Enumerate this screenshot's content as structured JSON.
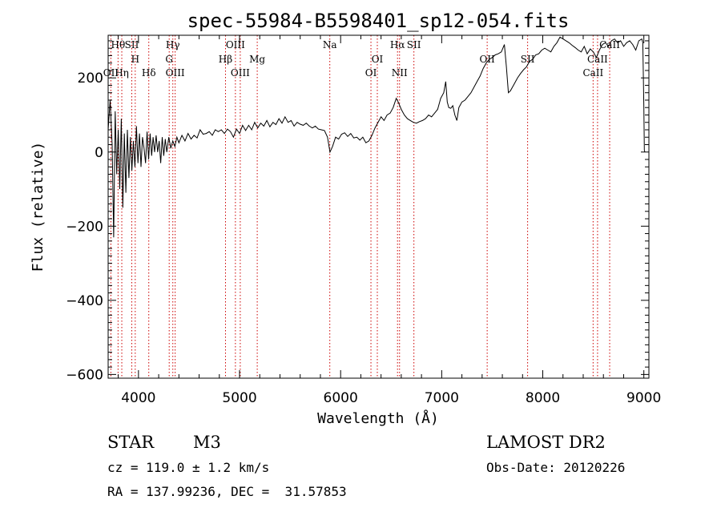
{
  "chart_data": {
    "type": "line",
    "title": "spec-55984-B5598401_sp12-054.fits",
    "xlabel": "Wavelength (Å)",
    "ylabel": "Flux (relative)",
    "xlim": [
      3700,
      9050
    ],
    "ylim": [
      -610,
      315
    ],
    "xticks": [
      {
        "value": 4000,
        "label": "4000"
      },
      {
        "value": 5000,
        "label": "5000"
      },
      {
        "value": 6000,
        "label": "6000"
      },
      {
        "value": 7000,
        "label": "7000"
      },
      {
        "value": 8000,
        "label": "8000"
      },
      {
        "value": 9000,
        "label": "9000"
      }
    ],
    "yticks": [
      {
        "value": 200,
        "label": "200"
      },
      {
        "value": 0,
        "label": "0"
      },
      {
        "value": -200,
        "label": "−200"
      },
      {
        "value": -400,
        "label": "−400"
      },
      {
        "value": -600,
        "label": "−600"
      }
    ],
    "grid": false,
    "line_color": "#000000",
    "marker_line_color": "#cc0000",
    "series": [
      {
        "points": [
          [
            3700,
            60
          ],
          [
            3720,
            140
          ],
          [
            3740,
            20
          ],
          [
            3755,
            -230
          ],
          [
            3770,
            110
          ],
          [
            3785,
            -60
          ],
          [
            3800,
            60
          ],
          [
            3815,
            -100
          ],
          [
            3830,
            90
          ],
          [
            3845,
            -150
          ],
          [
            3860,
            50
          ],
          [
            3875,
            -110
          ],
          [
            3890,
            60
          ],
          [
            3905,
            -70
          ],
          [
            3920,
            40
          ],
          [
            3935,
            -50
          ],
          [
            3950,
            30
          ],
          [
            3965,
            -40
          ],
          [
            3980,
            70
          ],
          [
            3995,
            -30
          ],
          [
            4010,
            50
          ],
          [
            4025,
            -40
          ],
          [
            4040,
            40
          ],
          [
            4055,
            10
          ],
          [
            4070,
            -30
          ],
          [
            4085,
            55
          ],
          [
            4100,
            -20
          ],
          [
            4115,
            50
          ],
          [
            4130,
            -10
          ],
          [
            4145,
            40
          ],
          [
            4160,
            0
          ],
          [
            4175,
            45
          ],
          [
            4190,
            0
          ],
          [
            4205,
            30
          ],
          [
            4220,
            -30
          ],
          [
            4235,
            40
          ],
          [
            4250,
            -10
          ],
          [
            4265,
            35
          ],
          [
            4280,
            0
          ],
          [
            4300,
            40
          ],
          [
            4320,
            10
          ],
          [
            4340,
            30
          ],
          [
            4360,
            15
          ],
          [
            4380,
            40
          ],
          [
            4400,
            25
          ],
          [
            4430,
            45
          ],
          [
            4460,
            30
          ],
          [
            4490,
            50
          ],
          [
            4520,
            35
          ],
          [
            4550,
            45
          ],
          [
            4580,
            38
          ],
          [
            4610,
            60
          ],
          [
            4640,
            48
          ],
          [
            4670,
            50
          ],
          [
            4700,
            55
          ],
          [
            4730,
            45
          ],
          [
            4760,
            60
          ],
          [
            4790,
            55
          ],
          [
            4820,
            60
          ],
          [
            4850,
            50
          ],
          [
            4880,
            62
          ],
          [
            4910,
            55
          ],
          [
            4940,
            40
          ],
          [
            4970,
            62
          ],
          [
            5000,
            50
          ],
          [
            5030,
            72
          ],
          [
            5060,
            58
          ],
          [
            5090,
            72
          ],
          [
            5120,
            60
          ],
          [
            5150,
            80
          ],
          [
            5180,
            65
          ],
          [
            5210,
            78
          ],
          [
            5240,
            70
          ],
          [
            5270,
            85
          ],
          [
            5300,
            68
          ],
          [
            5330,
            80
          ],
          [
            5360,
            74
          ],
          [
            5390,
            90
          ],
          [
            5420,
            78
          ],
          [
            5450,
            95
          ],
          [
            5480,
            80
          ],
          [
            5510,
            85
          ],
          [
            5540,
            70
          ],
          [
            5570,
            80
          ],
          [
            5600,
            75
          ],
          [
            5630,
            72
          ],
          [
            5660,
            78
          ],
          [
            5690,
            70
          ],
          [
            5720,
            65
          ],
          [
            5750,
            70
          ],
          [
            5780,
            62
          ],
          [
            5810,
            60
          ],
          [
            5840,
            58
          ],
          [
            5870,
            40
          ],
          [
            5895,
            0
          ],
          [
            5920,
            15
          ],
          [
            5950,
            40
          ],
          [
            5980,
            35
          ],
          [
            6010,
            48
          ],
          [
            6040,
            52
          ],
          [
            6070,
            42
          ],
          [
            6100,
            50
          ],
          [
            6130,
            38
          ],
          [
            6160,
            40
          ],
          [
            6190,
            32
          ],
          [
            6220,
            40
          ],
          [
            6250,
            25
          ],
          [
            6280,
            30
          ],
          [
            6310,
            45
          ],
          [
            6340,
            65
          ],
          [
            6370,
            80
          ],
          [
            6400,
            95
          ],
          [
            6430,
            85
          ],
          [
            6460,
            100
          ],
          [
            6490,
            105
          ],
          [
            6520,
            120
          ],
          [
            6550,
            145
          ],
          [
            6570,
            135
          ],
          [
            6600,
            115
          ],
          [
            6630,
            100
          ],
          [
            6660,
            90
          ],
          [
            6690,
            85
          ],
          [
            6720,
            80
          ],
          [
            6750,
            78
          ],
          [
            6780,
            82
          ],
          [
            6810,
            85
          ],
          [
            6840,
            90
          ],
          [
            6870,
            100
          ],
          [
            6900,
            95
          ],
          [
            6930,
            105
          ],
          [
            6960,
            115
          ],
          [
            6990,
            145
          ],
          [
            7020,
            160
          ],
          [
            7040,
            190
          ],
          [
            7055,
            135
          ],
          [
            7070,
            120
          ],
          [
            7090,
            118
          ],
          [
            7110,
            125
          ],
          [
            7130,
            100
          ],
          [
            7150,
            85
          ],
          [
            7170,
            120
          ],
          [
            7200,
            135
          ],
          [
            7230,
            140
          ],
          [
            7260,
            150
          ],
          [
            7290,
            160
          ],
          [
            7320,
            175
          ],
          [
            7350,
            190
          ],
          [
            7380,
            205
          ],
          [
            7410,
            225
          ],
          [
            7440,
            240
          ],
          [
            7470,
            250
          ],
          [
            7500,
            255
          ],
          [
            7530,
            262
          ],
          [
            7560,
            265
          ],
          [
            7590,
            270
          ],
          [
            7620,
            290
          ],
          [
            7640,
            230
          ],
          [
            7660,
            160
          ],
          [
            7680,
            165
          ],
          [
            7700,
            175
          ],
          [
            7720,
            185
          ],
          [
            7750,
            200
          ],
          [
            7780,
            212
          ],
          [
            7810,
            222
          ],
          [
            7840,
            230
          ],
          [
            7870,
            245
          ],
          [
            7900,
            250
          ],
          [
            7930,
            262
          ],
          [
            7960,
            265
          ],
          [
            7990,
            275
          ],
          [
            8020,
            280
          ],
          [
            8050,
            275
          ],
          [
            8080,
            270
          ],
          [
            8110,
            285
          ],
          [
            8140,
            295
          ],
          [
            8170,
            310
          ],
          [
            8200,
            305
          ],
          [
            8230,
            300
          ],
          [
            8260,
            295
          ],
          [
            8290,
            288
          ],
          [
            8320,
            282
          ],
          [
            8350,
            275
          ],
          [
            8380,
            270
          ],
          [
            8410,
            285
          ],
          [
            8440,
            265
          ],
          [
            8470,
            278
          ],
          [
            8500,
            270
          ],
          [
            8530,
            255
          ],
          [
            8560,
            275
          ],
          [
            8590,
            290
          ],
          [
            8620,
            295
          ],
          [
            8650,
            285
          ],
          [
            8680,
            300
          ],
          [
            8710,
            305
          ],
          [
            8740,
            295
          ],
          [
            8770,
            300
          ],
          [
            8800,
            285
          ],
          [
            8830,
            295
          ],
          [
            8860,
            300
          ],
          [
            8890,
            290
          ],
          [
            8920,
            275
          ],
          [
            8950,
            300
          ],
          [
            8980,
            305
          ],
          [
            8990,
            295
          ],
          [
            9000,
            120
          ],
          [
            9005,
            5
          ],
          [
            9010,
            0
          ]
        ]
      }
    ],
    "lines": [
      {
        "wavelength": 3798,
        "label": "Hθ",
        "row": 0
      },
      {
        "wavelength": 3835,
        "label": "Hη",
        "row": 2
      },
      {
        "wavelength": 3727,
        "label": "OII",
        "row": 2
      },
      {
        "wavelength": 3934,
        "label": "SII",
        "row": 0
      },
      {
        "wavelength": 3968,
        "label": "H",
        "row": 1
      },
      {
        "wavelength": 4102,
        "label": "Hδ",
        "row": 2
      },
      {
        "wavelength": 4304,
        "label": "G",
        "row": 1
      },
      {
        "wavelength": 4340,
        "label": "Hγ",
        "row": 0
      },
      {
        "wavelength": 4363,
        "label": "OIII",
        "row": 2
      },
      {
        "wavelength": 4861,
        "label": "Hβ",
        "row": 1
      },
      {
        "wavelength": 4959,
        "label": "OIII",
        "row": 0
      },
      {
        "wavelength": 5007,
        "label": "OIII",
        "row": 2
      },
      {
        "wavelength": 5175,
        "label": "Mg",
        "row": 1
      },
      {
        "wavelength": 5893,
        "label": "Na",
        "row": 0
      },
      {
        "wavelength": 6300,
        "label": "OI",
        "row": 2
      },
      {
        "wavelength": 6363,
        "label": "OI",
        "row": 1
      },
      {
        "wavelength": 6563,
        "label": "Hα",
        "row": 0
      },
      {
        "wavelength": 6583,
        "label": "NII",
        "row": 2
      },
      {
        "wavelength": 6725,
        "label": "SII",
        "row": 0
      },
      {
        "wavelength": 7450,
        "label": "OII",
        "row": 1
      },
      {
        "wavelength": 7850,
        "label": "SII",
        "row": 1
      },
      {
        "wavelength": 8498,
        "label": "CaII",
        "row": 2
      },
      {
        "wavelength": 8542,
        "label": "CaII",
        "row": 1
      },
      {
        "wavelength": 8662,
        "label": "CaII",
        "row": 0
      }
    ]
  },
  "footer": {
    "object_class": "STAR",
    "subclass": "M3",
    "survey": "LAMOST DR2",
    "redshift": "cz = 119.0 ± 1.2 km/s",
    "obs_date": "Obs-Date: 20120226",
    "coords": "RA = 137.99236, DEC =  31.57853"
  }
}
